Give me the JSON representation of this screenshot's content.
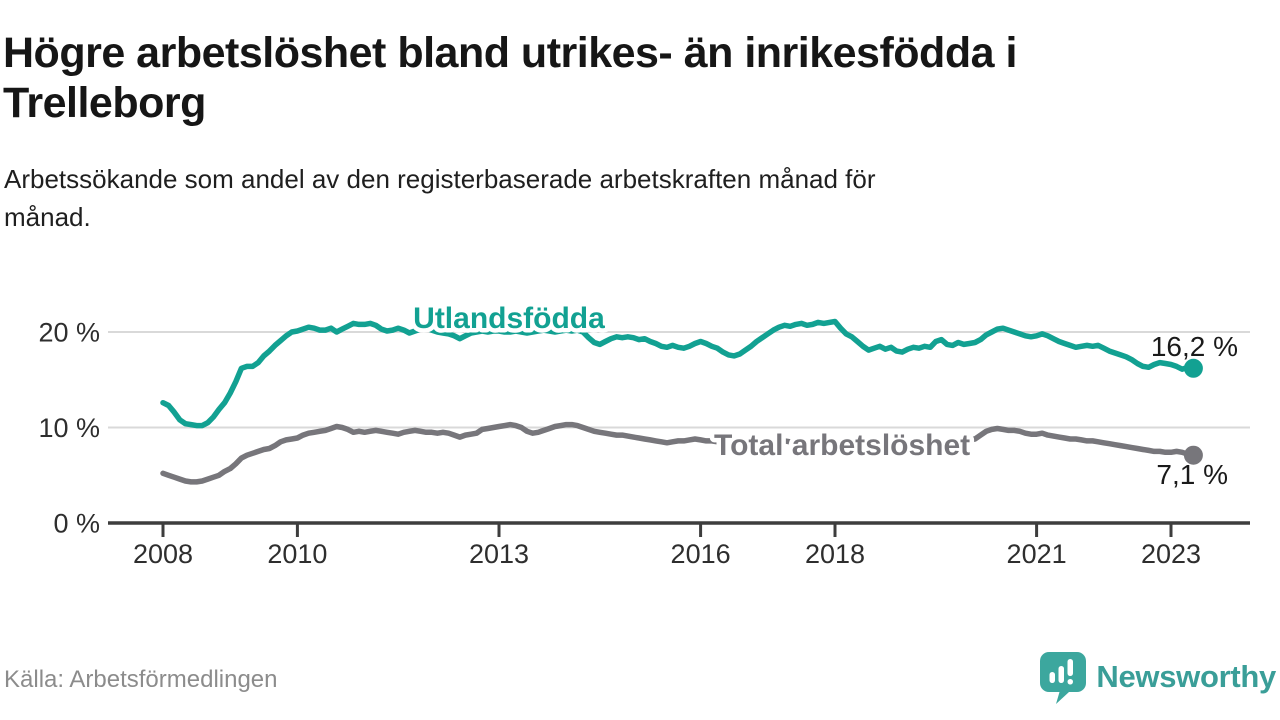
{
  "header": {
    "title_lines": [
      "Högre arbetslöshet bland utrikes- än inrikesfödda i",
      "Trelleborg"
    ],
    "subtitle_lines": [
      "Arbetssökande som andel av den registerbaserade arbetskraften månad för",
      "månad."
    ]
  },
  "chart_data": {
    "type": "line",
    "title": "Högre arbetslöshet bland utrikes- än inrikesfödda i Trelleborg",
    "subtitle": "Arbetssökande som andel av den registerbaserade arbetskraften månad för månad.",
    "x_unit": "month",
    "x_start": "2008-01",
    "x_end": "2023-05",
    "grid": "horizontal",
    "ylim": [
      0,
      22.5
    ],
    "xlim_years": [
      2007.2,
      2024.2
    ],
    "yticks": [
      {
        "value": 0,
        "label": "0 %"
      },
      {
        "value": 10,
        "label": "10 %"
      },
      {
        "value": 20,
        "label": "20 %"
      }
    ],
    "xticks": [
      {
        "value": 2008,
        "label": "2008"
      },
      {
        "value": 2010,
        "label": "2010"
      },
      {
        "value": 2013,
        "label": "2013"
      },
      {
        "value": 2016,
        "label": "2016"
      },
      {
        "value": 2018,
        "label": "2018"
      },
      {
        "value": 2021,
        "label": "2021"
      },
      {
        "value": 2023,
        "label": "2023"
      }
    ],
    "series": [
      {
        "name": "Total arbetslöshet",
        "color": "#77767b",
        "end_label": "7,1 %",
        "values": [
          5.2,
          5.0,
          4.8,
          4.6,
          4.4,
          4.3,
          4.3,
          4.4,
          4.6,
          4.8,
          5.0,
          5.4,
          5.7,
          6.2,
          6.8,
          7.1,
          7.3,
          7.5,
          7.7,
          7.8,
          8.1,
          8.5,
          8.7,
          8.8,
          8.9,
          9.2,
          9.4,
          9.5,
          9.6,
          9.7,
          9.9,
          10.1,
          10.0,
          9.8,
          9.5,
          9.6,
          9.5,
          9.6,
          9.7,
          9.6,
          9.5,
          9.4,
          9.3,
          9.5,
          9.6,
          9.7,
          9.6,
          9.5,
          9.5,
          9.4,
          9.5,
          9.4,
          9.2,
          9.0,
          9.2,
          9.3,
          9.4,
          9.8,
          9.9,
          10.0,
          10.1,
          10.2,
          10.3,
          10.2,
          10.0,
          9.6,
          9.4,
          9.5,
          9.7,
          9.9,
          10.1,
          10.2,
          10.3,
          10.3,
          10.2,
          10.0,
          9.8,
          9.6,
          9.5,
          9.4,
          9.3,
          9.2,
          9.2,
          9.1,
          9.0,
          8.9,
          8.8,
          8.7,
          8.6,
          8.5,
          8.4,
          8.5,
          8.6,
          8.6,
          8.7,
          8.8,
          8.7,
          8.6,
          8.6,
          8.5,
          8.4,
          8.3,
          8.4,
          8.6,
          8.7,
          8.6,
          8.5,
          8.5,
          8.5,
          8.6,
          8.7,
          8.6,
          8.5,
          8.4,
          8.3,
          8.5,
          8.6,
          8.5,
          8.4,
          8.4,
          8.4,
          8.4,
          8.3,
          8.2,
          8.1,
          8.0,
          8.1,
          8.2,
          8.2,
          8.1,
          8.1,
          8.2,
          8.2,
          8.3,
          8.3,
          8.2,
          8.3,
          8.4,
          8.5,
          8.5,
          8.4,
          8.5,
          8.6,
          8.6,
          8.7,
          8.8,
          9.2,
          9.6,
          9.8,
          9.9,
          9.8,
          9.7,
          9.7,
          9.6,
          9.4,
          9.3,
          9.3,
          9.4,
          9.2,
          9.1,
          9.0,
          8.9,
          8.8,
          8.8,
          8.7,
          8.6,
          8.6,
          8.5,
          8.4,
          8.3,
          8.2,
          8.1,
          8.0,
          7.9,
          7.8,
          7.7,
          7.6,
          7.5,
          7.5,
          7.4,
          7.4,
          7.5,
          7.4,
          7.2,
          7.1
        ]
      },
      {
        "name": "Utlandsfödda",
        "color": "#12a192",
        "end_label": "16,2 %",
        "values": [
          12.6,
          12.3,
          11.6,
          10.8,
          10.4,
          10.3,
          10.2,
          10.2,
          10.5,
          11.1,
          11.9,
          12.6,
          13.6,
          14.8,
          16.2,
          16.4,
          16.4,
          16.8,
          17.5,
          18.0,
          18.6,
          19.1,
          19.6,
          20.0,
          20.1,
          20.3,
          20.5,
          20.4,
          20.2,
          20.2,
          20.4,
          20.0,
          20.3,
          20.6,
          20.9,
          20.8,
          20.8,
          20.9,
          20.7,
          20.3,
          20.1,
          20.2,
          20.4,
          20.2,
          19.9,
          20.1,
          20.3,
          20.4,
          20.2,
          20.0,
          19.9,
          19.8,
          19.6,
          19.3,
          19.6,
          19.9,
          20.0,
          20.1,
          20.0,
          20.1,
          20.1,
          20.0,
          20.0,
          20.1,
          20.0,
          19.9,
          20.0,
          20.1,
          20.2,
          20.1,
          20.0,
          20.1,
          20.2,
          20.1,
          20.2,
          20.0,
          19.4,
          18.9,
          18.7,
          19.0,
          19.3,
          19.5,
          19.4,
          19.5,
          19.4,
          19.2,
          19.3,
          19.0,
          18.8,
          18.5,
          18.4,
          18.6,
          18.4,
          18.3,
          18.5,
          18.8,
          19.0,
          18.8,
          18.5,
          18.3,
          17.9,
          17.6,
          17.5,
          17.7,
          18.1,
          18.5,
          19.0,
          19.4,
          19.8,
          20.2,
          20.5,
          20.7,
          20.6,
          20.8,
          20.9,
          20.7,
          20.8,
          21.0,
          20.9,
          21.0,
          21.1,
          20.4,
          19.8,
          19.5,
          19.0,
          18.5,
          18.1,
          18.3,
          18.5,
          18.2,
          18.4,
          18.0,
          17.9,
          18.2,
          18.4,
          18.3,
          18.5,
          18.4,
          19.0,
          19.2,
          18.7,
          18.6,
          18.9,
          18.7,
          18.8,
          18.9,
          19.2,
          19.7,
          20.0,
          20.3,
          20.4,
          20.2,
          20.0,
          19.8,
          19.6,
          19.5,
          19.6,
          19.8,
          19.6,
          19.3,
          19.0,
          18.8,
          18.6,
          18.4,
          18.5,
          18.6,
          18.5,
          18.6,
          18.3,
          18.0,
          17.8,
          17.6,
          17.4,
          17.1,
          16.7,
          16.4,
          16.3,
          16.6,
          16.8,
          16.7,
          16.6,
          16.4,
          16.1,
          16.3,
          16.2
        ]
      }
    ]
  },
  "footer": {
    "source": "Källa: Arbetsförmedlingen",
    "brand": "Newsworthy",
    "brand_icon": "newsworthy-speech-bubble-bars-icon",
    "brand_color": "#3a9e98"
  }
}
